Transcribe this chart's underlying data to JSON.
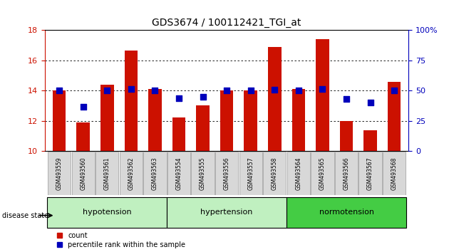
{
  "title": "GDS3674 / 100112421_TGI_at",
  "samples": [
    "GSM493559",
    "GSM493560",
    "GSM493561",
    "GSM493562",
    "GSM493563",
    "GSM493554",
    "GSM493555",
    "GSM493556",
    "GSM493557",
    "GSM493558",
    "GSM493564",
    "GSM493565",
    "GSM493566",
    "GSM493567",
    "GSM493568"
  ],
  "counts": [
    14.0,
    11.9,
    14.4,
    16.65,
    14.1,
    12.25,
    13.05,
    14.0,
    14.0,
    16.9,
    14.1,
    17.4,
    12.0,
    11.4,
    14.6
  ],
  "percentiles": [
    50.0,
    37.0,
    50.5,
    51.5,
    50.0,
    44.0,
    45.0,
    50.5,
    50.0,
    51.0,
    50.5,
    51.5,
    43.0,
    40.0,
    50.0
  ],
  "group_boundaries": [
    0,
    5,
    10,
    15
  ],
  "group_labels": [
    "hypotension",
    "hypertension",
    "normotension"
  ],
  "group_colors": [
    "#c0f0c0",
    "#c0f0c0",
    "#44cc44"
  ],
  "ylim_left": [
    10,
    18
  ],
  "ylim_right": [
    0,
    100
  ],
  "yticks_left": [
    10,
    12,
    14,
    16,
    18
  ],
  "yticks_right": [
    0,
    25,
    50,
    75,
    100
  ],
  "ytick_right_labels": [
    "0",
    "25",
    "50",
    "75",
    "100%"
  ],
  "bar_color": "#cc1100",
  "dot_color": "#0000bb",
  "grid_levels": [
    12,
    14,
    16
  ],
  "label_color_left": "#cc1100",
  "label_color_right": "#0000bb",
  "tick_label_bg": "#d8d8d8"
}
